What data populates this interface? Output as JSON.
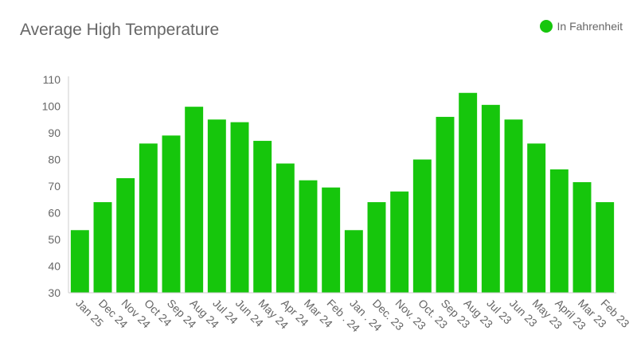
{
  "title": "Average High Temperature",
  "legend": {
    "label": "In Fahrenheit",
    "color": "#16c60c"
  },
  "chart_data": {
    "type": "bar",
    "title": "Average High Temperature",
    "xlabel": "",
    "ylabel": "",
    "ylim": [
      30,
      110
    ],
    "yticks": [
      30,
      40,
      50,
      60,
      70,
      80,
      90,
      100,
      110
    ],
    "grid": false,
    "legend_position": "top-right",
    "categories": [
      "Jan 25",
      "Dec 24",
      "Nov 24",
      "Oct 24",
      "Sep 24",
      "Aug 24",
      "Jul 24",
      "Jun 24",
      "May 24",
      "Apr 24",
      "Mar 24",
      "Feb . 24",
      "Jan . 24",
      "Dec. 23",
      "Nov. 23",
      "Oct. 23",
      "Sep 23",
      "Aug 23",
      "Jul 23",
      "Jun 23",
      "May 23",
      "April 23",
      "Mar 23",
      "Feb 23"
    ],
    "series": [
      {
        "name": "In Fahrenheit",
        "color": "#16c60c",
        "values": [
          53.5,
          64,
          73,
          86,
          89,
          99.8,
          95,
          94,
          87,
          78.5,
          72.2,
          69.5,
          53.5,
          64,
          68,
          80,
          96,
          105,
          100.5,
          95,
          86,
          76.3,
          71.5,
          64
        ]
      }
    ]
  }
}
